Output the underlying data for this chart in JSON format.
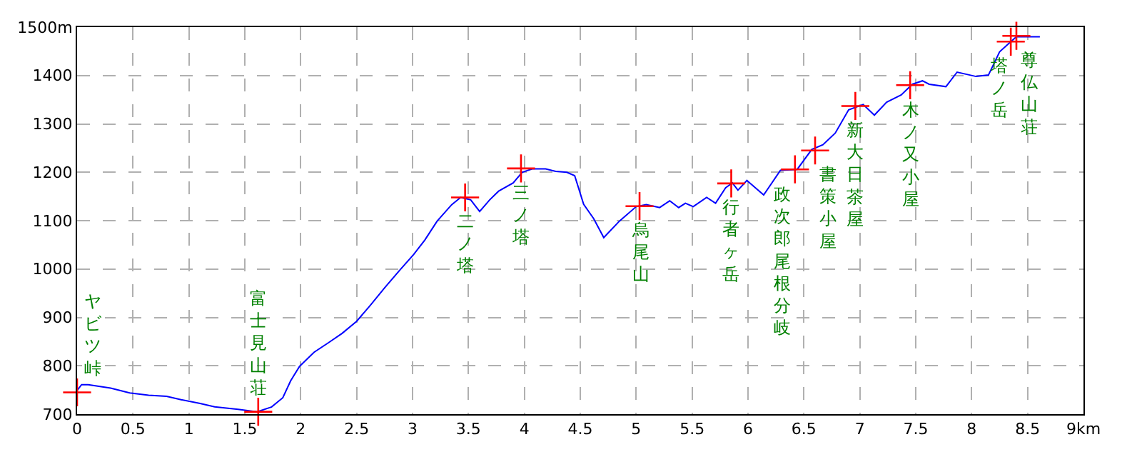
{
  "chart_data": {
    "type": "line",
    "xlim": [
      0,
      9
    ],
    "ylim": [
      700,
      1500
    ],
    "xticks": [
      0,
      0.5,
      1,
      1.5,
      2,
      2.5,
      3,
      3.5,
      4,
      4.5,
      5,
      5.5,
      6,
      6.5,
      7,
      7.5,
      8,
      8.5,
      {
        "value": 9,
        "label": "9km"
      }
    ],
    "yticks": [
      700,
      800,
      900,
      1000,
      1100,
      1200,
      1300,
      1400,
      {
        "value": 1500,
        "label": "1500m"
      }
    ],
    "grid": true,
    "series": [
      {
        "color": "#0000ff",
        "marker": "none",
        "x": [
          0,
          0.04,
          0.1,
          0.3,
          0.47,
          0.64,
          0.8,
          0.93,
          1.1,
          1.23,
          1.44,
          1.61,
          1.74,
          1.84,
          1.91,
          1.99,
          2.12,
          2.25,
          2.37,
          2.5,
          2.63,
          2.75,
          2.88,
          3.01,
          3.11,
          3.22,
          3.35,
          3.43,
          3.52,
          3.6,
          3.69,
          3.77,
          3.9,
          3.98,
          4.07,
          4.19,
          4.28,
          4.38,
          4.45,
          4.53,
          4.62,
          4.71,
          4.85,
          5.0,
          5.09,
          5.21,
          5.3,
          5.38,
          5.44,
          5.51,
          5.63,
          5.71,
          5.8,
          5.86,
          5.91,
          5.99,
          6.14,
          6.29,
          6.44,
          6.57,
          6.67,
          6.78,
          6.9,
          7.03,
          7.13,
          7.24,
          7.37,
          7.47,
          7.56,
          7.62,
          7.77,
          7.87,
          8.04,
          8.15,
          8.25,
          8.34,
          8.4,
          8.61
        ],
        "values": [
          749,
          761,
          761,
          754,
          744,
          739,
          737,
          730,
          722,
          715,
          710,
          705,
          715,
          734,
          769,
          799,
          828,
          848,
          867,
          892,
          927,
          961,
          996,
          1030,
          1060,
          1099,
          1133,
          1148,
          1143,
          1119,
          1143,
          1161,
          1178,
          1200,
          1207,
          1207,
          1202,
          1200,
          1193,
          1134,
          1104,
          1065,
          1099,
          1129,
          1133,
          1127,
          1141,
          1127,
          1136,
          1129,
          1148,
          1136,
          1168,
          1178,
          1163,
          1183,
          1153,
          1204,
          1206,
          1247,
          1257,
          1281,
          1329,
          1340,
          1318,
          1345,
          1360,
          1382,
          1389,
          1382,
          1377,
          1407,
          1398,
          1401,
          1449,
          1468,
          1480,
          1480
        ]
      },
      {
        "type": "scatter",
        "color": "#ff0000",
        "marker": "cross",
        "x": [
          0,
          1.62,
          3.47,
          3.97,
          5.03,
          5.85,
          6.42,
          6.6,
          6.96,
          7.45,
          8.35,
          8.4
        ],
        "values": [
          745,
          705,
          1148,
          1208,
          1130,
          1177,
          1206,
          1245,
          1337,
          1380,
          1470,
          1482
        ]
      }
    ],
    "annotations": [
      {
        "text": "ヤビツ峠",
        "x": 0,
        "y": 745
      },
      {
        "text": "富士見山荘",
        "x": 1.62,
        "y": 705
      },
      {
        "text": "二ノ塔",
        "x": 3.47,
        "y": 1148
      },
      {
        "text": "三ノ塔",
        "x": 3.97,
        "y": 1208
      },
      {
        "text": "烏尾山",
        "x": 5.03,
        "y": 1130
      },
      {
        "text": "行者ヶ岳",
        "x": 5.85,
        "y": 1177
      },
      {
        "text": "政次郎尾根分岐",
        "x": 6.42,
        "y": 1206
      },
      {
        "text": "書策小屋",
        "x": 6.6,
        "y": 1245
      },
      {
        "text": "新大日茶屋",
        "x": 6.96,
        "y": 1337
      },
      {
        "text": "木ノ又小屋",
        "x": 7.45,
        "y": 1380
      },
      {
        "text": "塔ノ岳",
        "x": 8.35,
        "y": 1470
      },
      {
        "text": "尊仏山荘",
        "x": 8.4,
        "y": 1482
      }
    ]
  }
}
